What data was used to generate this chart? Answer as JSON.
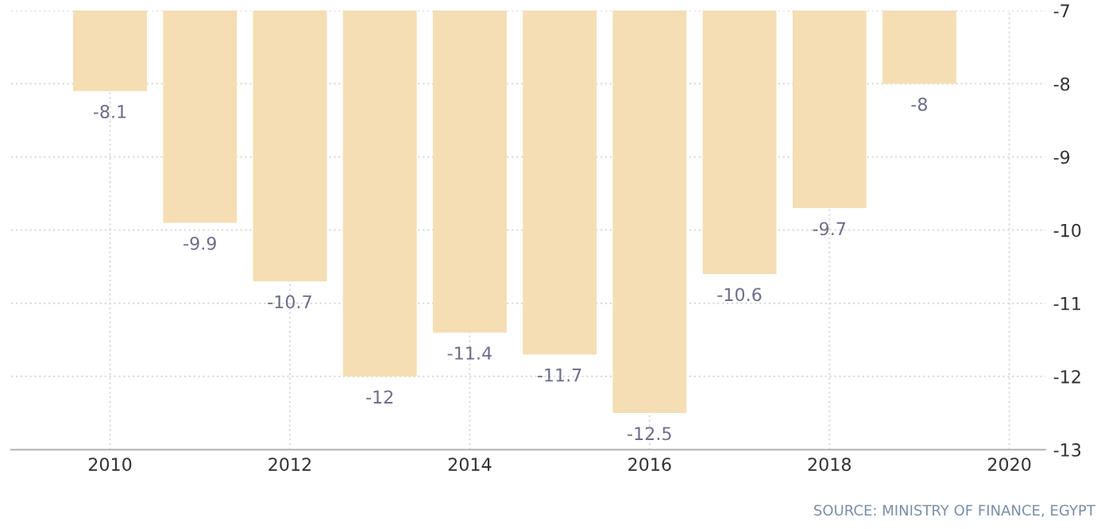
{
  "chart_data": {
    "type": "bar",
    "x": [
      2010,
      2011,
      2012,
      2013,
      2014,
      2015,
      2016,
      2017,
      2018,
      2019
    ],
    "values": [
      -8.1,
      -9.9,
      -10.7,
      -12,
      -11.4,
      -11.7,
      -12.5,
      -10.6,
      -9.7,
      -8
    ],
    "color": "#f5deb3",
    "data_labels": true,
    "xlim": [
      2008.9,
      2020.4
    ],
    "xticks": [
      2010,
      2012,
      2014,
      2016,
      2018,
      2020
    ],
    "ylim": [
      -13,
      -7
    ],
    "yticks": [
      -13,
      -12,
      -11,
      -10,
      -9,
      -8,
      -7
    ],
    "grid": true,
    "annotations": [
      "SOURCE: MINISTRY OF FINANCE, EGYPT"
    ]
  }
}
